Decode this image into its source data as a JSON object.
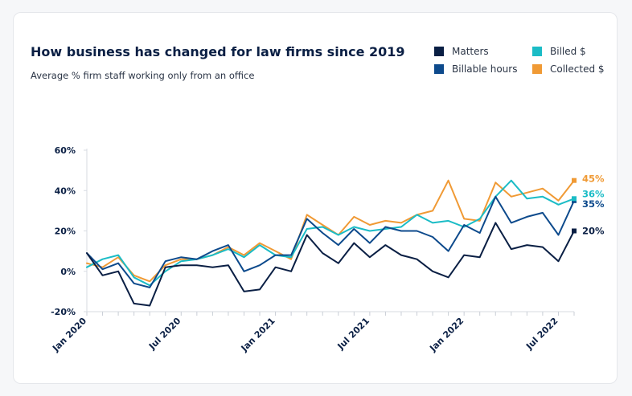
{
  "chart_data": {
    "type": "line",
    "title": "How business has changed for law firms since 2019",
    "subtitle": "Average % firm staff working only from an office",
    "xlabel": "",
    "ylabel": "",
    "ylim": [
      -20,
      60
    ],
    "yticks": [
      {
        "value": 60,
        "label": "60%"
      },
      {
        "value": 40,
        "label": "40%"
      },
      {
        "value": 20,
        "label": "20%"
      },
      {
        "value": 0,
        "label": "0%"
      },
      {
        "value": -20,
        "label": "-20%"
      }
    ],
    "xticks": [
      {
        "index": 0,
        "label": "Jan 2020"
      },
      {
        "index": 6,
        "label": "Jul 2020"
      },
      {
        "index": 12,
        "label": "Jan 2021"
      },
      {
        "index": 18,
        "label": "Jul 2021"
      },
      {
        "index": 24,
        "label": "Jan 2022"
      },
      {
        "index": 30,
        "label": "Jul 2022"
      }
    ],
    "n_points": 32,
    "grid": false,
    "legend_position": "top-right",
    "series": [
      {
        "name": "Matters",
        "color": "#0a1f44",
        "end_label": "20%",
        "values": [
          9,
          -2,
          0,
          -16,
          -17,
          2,
          3,
          3,
          2,
          3,
          -10,
          -9,
          2,
          0,
          18,
          9,
          4,
          14,
          7,
          13,
          8,
          6,
          0,
          -3,
          8,
          7,
          24,
          11,
          13,
          12,
          5,
          20
        ]
      },
      {
        "name": "Billable hours",
        "color": "#0d4a8c",
        "end_label": "35%",
        "values": [
          9,
          1,
          4,
          -6,
          -8,
          5,
          7,
          6,
          10,
          13,
          0,
          3,
          8,
          8,
          26,
          19,
          13,
          21,
          14,
          22,
          20,
          20,
          17,
          10,
          23,
          19,
          37,
          24,
          27,
          29,
          18,
          35
        ]
      },
      {
        "name": "Billed $",
        "color": "#1bbcc6",
        "end_label": "36%",
        "values": [
          2,
          6,
          8,
          -3,
          -7,
          0,
          5,
          6,
          8,
          11,
          7,
          13,
          8,
          7,
          21,
          22,
          18,
          22,
          20,
          21,
          22,
          28,
          24,
          25,
          22,
          26,
          37,
          45,
          36,
          37,
          33,
          36
        ]
      },
      {
        "name": "Collected $",
        "color": "#f09a35",
        "end_label": "45%",
        "values": [
          4,
          2,
          7,
          -2,
          -5,
          3,
          6,
          6,
          8,
          12,
          8,
          14,
          10,
          6,
          28,
          23,
          18,
          27,
          23,
          25,
          24,
          28,
          30,
          45,
          26,
          25,
          44,
          37,
          39,
          41,
          35,
          45
        ]
      }
    ]
  }
}
